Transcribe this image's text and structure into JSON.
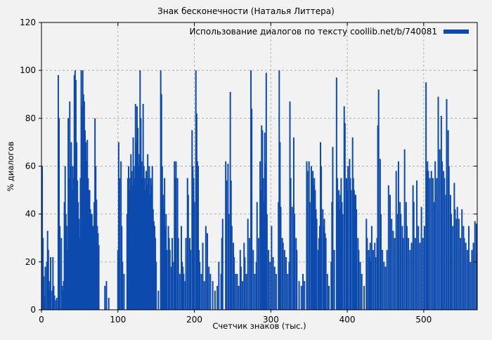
{
  "window": {
    "background": "#f2f2f2"
  },
  "chart_data": {
    "type": "bar",
    "subtype": "impulses",
    "title": "Знак бесконечности (Наталья Литтера)",
    "legend": {
      "label": "Использование диалогов по тексту coollib.net/b/740081",
      "position": "top-right-inside",
      "swatch_color": "#0d4aad"
    },
    "xlabel": "Счетчик знаков (тыс.)",
    "ylabel": "% диалогов",
    "xlim": [
      0,
      570
    ],
    "ylim": [
      0,
      120
    ],
    "xticks": [
      0,
      100,
      200,
      300,
      400,
      500
    ],
    "yticks": [
      0,
      20,
      40,
      60,
      80,
      100,
      120
    ],
    "grid": true,
    "bar_color": "#0d4aad",
    "grid_color": "#b0b0b0",
    "axis_color": "#000000",
    "plot_background": "#f2f2f2",
    "points": [
      [
        0,
        60
      ],
      [
        1,
        57
      ],
      [
        2,
        30
      ],
      [
        3,
        14
      ],
      [
        4,
        6
      ],
      [
        5,
        18
      ],
      [
        7,
        20
      ],
      [
        8,
        33
      ],
      [
        9,
        25
      ],
      [
        10,
        12
      ],
      [
        11,
        8
      ],
      [
        12,
        22
      ],
      [
        14,
        8
      ],
      [
        15,
        22
      ],
      [
        16,
        10
      ],
      [
        17,
        6
      ],
      [
        19,
        4
      ],
      [
        20,
        5
      ],
      [
        22,
        98
      ],
      [
        23,
        80
      ],
      [
        24,
        35
      ],
      [
        26,
        30
      ],
      [
        27,
        10
      ],
      [
        28,
        8
      ],
      [
        29,
        12
      ],
      [
        30,
        45
      ],
      [
        31,
        60
      ],
      [
        32,
        40
      ],
      [
        33,
        35
      ],
      [
        34,
        25
      ],
      [
        35,
        80
      ],
      [
        36,
        55
      ],
      [
        37,
        87
      ],
      [
        38,
        60
      ],
      [
        39,
        70
      ],
      [
        40,
        50
      ],
      [
        41,
        60
      ],
      [
        42,
        55
      ],
      [
        43,
        98
      ],
      [
        44,
        100
      ],
      [
        45,
        96
      ],
      [
        46,
        70
      ],
      [
        47,
        54
      ],
      [
        48,
        45
      ],
      [
        49,
        38
      ],
      [
        50,
        30
      ],
      [
        51,
        55
      ],
      [
        52,
        100
      ],
      [
        53,
        85
      ],
      [
        54,
        100
      ],
      [
        55,
        90
      ],
      [
        56,
        87
      ],
      [
        57,
        75
      ],
      [
        58,
        70
      ],
      [
        59,
        62
      ],
      [
        60,
        71
      ],
      [
        61,
        55
      ],
      [
        62,
        50
      ],
      [
        63,
        50
      ],
      [
        64,
        42
      ],
      [
        65,
        40
      ],
      [
        66,
        40
      ],
      [
        67,
        35
      ],
      [
        68,
        35
      ],
      [
        69,
        45
      ],
      [
        70,
        80
      ],
      [
        71,
        60
      ],
      [
        72,
        46
      ],
      [
        73,
        35
      ],
      [
        74,
        32
      ],
      [
        75,
        27
      ],
      [
        83,
        10
      ],
      [
        85,
        12
      ],
      [
        88,
        5
      ],
      [
        100,
        25
      ],
      [
        101,
        70
      ],
      [
        102,
        55
      ],
      [
        104,
        62
      ],
      [
        105,
        35
      ],
      [
        106,
        20
      ],
      [
        108,
        15
      ],
      [
        112,
        40
      ],
      [
        113,
        55
      ],
      [
        114,
        60
      ],
      [
        115,
        50
      ],
      [
        116,
        55
      ],
      [
        117,
        65
      ],
      [
        118,
        58
      ],
      [
        119,
        52
      ],
      [
        120,
        72
      ],
      [
        121,
        60
      ],
      [
        122,
        55
      ],
      [
        123,
        86
      ],
      [
        124,
        70
      ],
      [
        125,
        85
      ],
      [
        126,
        76
      ],
      [
        127,
        60
      ],
      [
        128,
        65
      ],
      [
        129,
        100
      ],
      [
        130,
        80
      ],
      [
        131,
        62
      ],
      [
        132,
        55
      ],
      [
        133,
        86
      ],
      [
        134,
        60
      ],
      [
        135,
        55
      ],
      [
        136,
        50
      ],
      [
        137,
        58
      ],
      [
        138,
        52
      ],
      [
        139,
        65
      ],
      [
        140,
        55
      ],
      [
        141,
        60
      ],
      [
        142,
        48
      ],
      [
        143,
        55
      ],
      [
        144,
        52
      ],
      [
        145,
        60
      ],
      [
        146,
        42
      ],
      [
        147,
        37
      ],
      [
        148,
        35
      ],
      [
        149,
        30
      ],
      [
        150,
        20
      ],
      [
        153,
        8
      ],
      [
        156,
        100
      ],
      [
        157,
        90
      ],
      [
        158,
        60
      ],
      [
        159,
        48
      ],
      [
        160,
        42
      ],
      [
        161,
        55
      ],
      [
        162,
        35
      ],
      [
        163,
        40
      ],
      [
        164,
        25
      ],
      [
        166,
        35
      ],
      [
        167,
        30
      ],
      [
        168,
        25
      ],
      [
        170,
        18
      ],
      [
        171,
        30
      ],
      [
        173,
        20
      ],
      [
        174,
        62
      ],
      [
        175,
        55
      ],
      [
        176,
        62
      ],
      [
        178,
        55
      ],
      [
        179,
        30
      ],
      [
        181,
        15
      ],
      [
        183,
        35
      ],
      [
        184,
        20
      ],
      [
        185,
        18
      ],
      [
        186,
        15
      ],
      [
        188,
        12
      ],
      [
        189,
        30
      ],
      [
        191,
        55
      ],
      [
        192,
        48
      ],
      [
        194,
        30
      ],
      [
        195,
        25
      ],
      [
        197,
        75
      ],
      [
        198,
        60
      ],
      [
        199,
        55
      ],
      [
        200,
        45
      ],
      [
        202,
        100
      ],
      [
        203,
        82
      ],
      [
        204,
        62
      ],
      [
        205,
        60
      ],
      [
        206,
        25
      ],
      [
        207,
        20
      ],
      [
        209,
        15
      ],
      [
        211,
        28
      ],
      [
        213,
        12
      ],
      [
        215,
        35
      ],
      [
        217,
        32
      ],
      [
        219,
        18
      ],
      [
        221,
        15
      ],
      [
        224,
        12
      ],
      [
        227,
        8
      ],
      [
        230,
        10
      ],
      [
        232,
        20
      ],
      [
        235,
        15
      ],
      [
        236,
        30
      ],
      [
        237,
        38
      ],
      [
        241,
        62
      ],
      [
        242,
        54
      ],
      [
        244,
        61
      ],
      [
        245,
        40
      ],
      [
        247,
        91
      ],
      [
        248,
        54
      ],
      [
        249,
        35
      ],
      [
        251,
        28
      ],
      [
        252,
        22
      ],
      [
        254,
        15
      ],
      [
        256,
        15
      ],
      [
        258,
        10
      ],
      [
        260,
        25
      ],
      [
        261,
        18
      ],
      [
        263,
        12
      ],
      [
        265,
        28
      ],
      [
        266,
        22
      ],
      [
        268,
        15
      ],
      [
        270,
        38
      ],
      [
        272,
        30
      ],
      [
        274,
        100
      ],
      [
        275,
        84
      ],
      [
        277,
        25
      ],
      [
        279,
        15
      ],
      [
        281,
        20
      ],
      [
        282,
        45
      ],
      [
        284,
        30
      ],
      [
        286,
        62
      ],
      [
        287,
        50
      ],
      [
        288,
        77
      ],
      [
        289,
        75
      ],
      [
        290,
        55
      ],
      [
        291,
        45
      ],
      [
        292,
        74
      ],
      [
        293,
        61
      ],
      [
        294,
        99
      ],
      [
        295,
        40
      ],
      [
        297,
        25
      ],
      [
        299,
        20
      ],
      [
        301,
        35
      ],
      [
        303,
        22
      ],
      [
        305,
        18
      ],
      [
        307,
        15
      ],
      [
        310,
        45
      ],
      [
        311,
        100
      ],
      [
        312,
        70
      ],
      [
        313,
        43
      ],
      [
        315,
        30
      ],
      [
        316,
        28
      ],
      [
        318,
        25
      ],
      [
        320,
        22
      ],
      [
        322,
        15
      ],
      [
        324,
        20
      ],
      [
        325,
        87
      ],
      [
        326,
        55
      ],
      [
        328,
        43
      ],
      [
        330,
        72
      ],
      [
        331,
        40
      ],
      [
        333,
        30
      ],
      [
        334,
        25
      ],
      [
        337,
        12
      ],
      [
        340,
        10
      ],
      [
        342,
        15
      ],
      [
        344,
        12
      ],
      [
        347,
        62
      ],
      [
        348,
        58
      ],
      [
        350,
        62
      ],
      [
        351,
        45
      ],
      [
        353,
        60
      ],
      [
        354,
        55
      ],
      [
        355,
        58
      ],
      [
        356,
        52
      ],
      [
        357,
        55
      ],
      [
        358,
        50
      ],
      [
        359,
        42
      ],
      [
        360,
        38
      ],
      [
        362,
        25
      ],
      [
        363,
        30
      ],
      [
        364,
        35
      ],
      [
        365,
        70
      ],
      [
        366,
        60
      ],
      [
        368,
        42
      ],
      [
        369,
        35
      ],
      [
        370,
        38
      ],
      [
        371,
        32
      ],
      [
        372,
        30
      ],
      [
        374,
        15
      ],
      [
        376,
        10
      ],
      [
        379,
        20
      ],
      [
        380,
        45
      ],
      [
        381,
        68
      ],
      [
        383,
        25
      ],
      [
        386,
        97
      ],
      [
        387,
        55
      ],
      [
        388,
        45
      ],
      [
        389,
        50
      ],
      [
        390,
        42
      ],
      [
        391,
        48
      ],
      [
        392,
        55
      ],
      [
        393,
        45
      ],
      [
        394,
        40
      ],
      [
        396,
        85
      ],
      [
        397,
        78
      ],
      [
        399,
        55
      ],
      [
        400,
        50
      ],
      [
        401,
        60
      ],
      [
        403,
        63
      ],
      [
        404,
        55
      ],
      [
        405,
        50
      ],
      [
        407,
        72
      ],
      [
        408,
        55
      ],
      [
        409,
        50
      ],
      [
        410,
        48
      ],
      [
        411,
        48
      ],
      [
        412,
        42
      ],
      [
        414,
        30
      ],
      [
        415,
        25
      ],
      [
        417,
        20
      ],
      [
        419,
        15
      ],
      [
        422,
        10
      ],
      [
        425,
        38
      ],
      [
        426,
        30
      ],
      [
        428,
        25
      ],
      [
        429,
        22
      ],
      [
        430,
        28
      ],
      [
        431,
        20
      ],
      [
        432,
        35
      ],
      [
        434,
        25
      ],
      [
        436,
        28
      ],
      [
        437,
        22
      ],
      [
        439,
        30
      ],
      [
        440,
        77
      ],
      [
        441,
        92
      ],
      [
        443,
        63
      ],
      [
        444,
        40
      ],
      [
        446,
        25
      ],
      [
        448,
        20
      ],
      [
        450,
        18
      ],
      [
        452,
        25
      ],
      [
        454,
        52
      ],
      [
        456,
        48
      ],
      [
        458,
        38
      ],
      [
        460,
        33
      ],
      [
        462,
        30
      ],
      [
        464,
        58
      ],
      [
        466,
        40
      ],
      [
        467,
        62
      ],
      [
        469,
        45
      ],
      [
        470,
        40
      ],
      [
        472,
        35
      ],
      [
        473,
        30
      ],
      [
        475,
        67
      ],
      [
        477,
        45
      ],
      [
        478,
        35
      ],
      [
        480,
        30
      ],
      [
        482,
        25
      ],
      [
        484,
        28
      ],
      [
        486,
        52
      ],
      [
        487,
        45
      ],
      [
        489,
        30
      ],
      [
        491,
        54
      ],
      [
        493,
        35
      ],
      [
        495,
        28
      ],
      [
        497,
        43
      ],
      [
        499,
        30
      ],
      [
        501,
        35
      ],
      [
        503,
        95
      ],
      [
        504,
        58
      ],
      [
        505,
        62
      ],
      [
        506,
        58
      ],
      [
        508,
        55
      ],
      [
        510,
        58
      ],
      [
        512,
        55
      ],
      [
        514,
        45
      ],
      [
        515,
        62
      ],
      [
        517,
        55
      ],
      [
        519,
        89
      ],
      [
        521,
        67
      ],
      [
        523,
        81
      ],
      [
        524,
        62
      ],
      [
        526,
        58
      ],
      [
        527,
        55
      ],
      [
        529,
        48
      ],
      [
        530,
        88
      ],
      [
        532,
        75
      ],
      [
        533,
        60
      ],
      [
        535,
        48
      ],
      [
        536,
        40
      ],
      [
        538,
        35
      ],
      [
        540,
        53
      ],
      [
        541,
        42
      ],
      [
        543,
        38
      ],
      [
        544,
        43
      ],
      [
        546,
        38
      ],
      [
        548,
        30
      ],
      [
        550,
        42
      ],
      [
        552,
        35
      ],
      [
        553,
        30
      ],
      [
        555,
        28
      ],
      [
        557,
        25
      ],
      [
        559,
        35
      ],
      [
        561,
        20
      ],
      [
        563,
        25
      ],
      [
        565,
        28
      ],
      [
        567,
        37
      ],
      [
        569,
        36
      ]
    ]
  }
}
